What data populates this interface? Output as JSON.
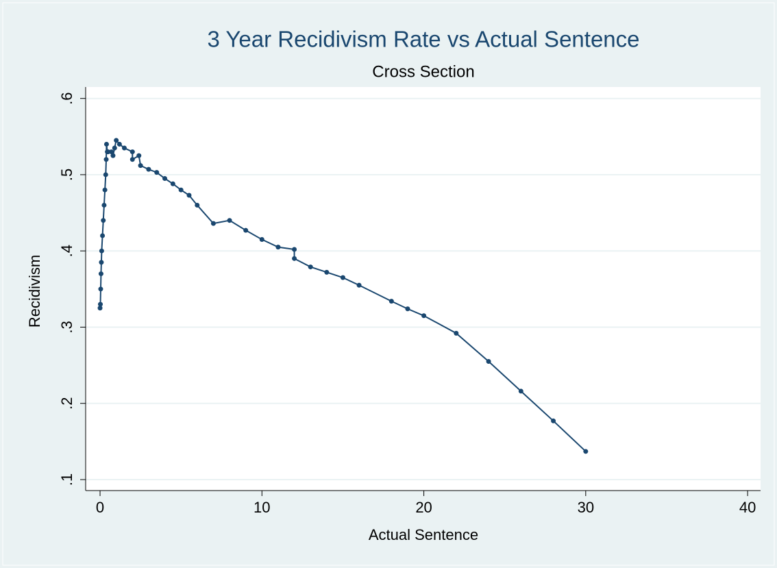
{
  "chart_data": {
    "type": "line",
    "title": "3 Year Recidivism Rate vs Actual Sentence",
    "subtitle": "Cross Section",
    "x_label": "Actual Sentence",
    "y_label": "Recidivism",
    "color": "#1a476f",
    "grid": true,
    "x": [
      0,
      0.02,
      0.04,
      0.06,
      0.08,
      0.1,
      0.15,
      0.2,
      0.25,
      0.3,
      0.35,
      0.38,
      0.4,
      0.45,
      0.5,
      0.7,
      0.8,
      0.9,
      1,
      1.2,
      1.5,
      2,
      2,
      2.4,
      2.5,
      3,
      3.5,
      4,
      4.5,
      5,
      5.5,
      6,
      7,
      8,
      9,
      10,
      11,
      12,
      12,
      13,
      14,
      15,
      16,
      18,
      19,
      20,
      22,
      24,
      26,
      28,
      30
    ],
    "values": [
      0.325,
      0.33,
      0.35,
      0.37,
      0.385,
      0.4,
      0.42,
      0.44,
      0.46,
      0.48,
      0.5,
      0.52,
      0.54,
      0.53,
      0.53,
      0.53,
      0.525,
      0.535,
      0.545,
      0.54,
      0.535,
      0.53,
      0.52,
      0.525,
      0.512,
      0.507,
      0.503,
      0.495,
      0.488,
      0.48,
      0.473,
      0.46,
      0.436,
      0.44,
      0.427,
      0.415,
      0.405,
      0.402,
      0.39,
      0.379,
      0.372,
      0.365,
      0.355,
      0.334,
      0.324,
      0.315,
      0.292,
      0.255,
      0.216,
      0.177,
      0.137
    ],
    "xlim": [
      -0.89,
      40.8
    ],
    "ylim": [
      0.0856,
      0.615
    ],
    "xticks": [
      0,
      10,
      20,
      30,
      40
    ],
    "yticks": [
      {
        "value": 0.1,
        "label": ".1"
      },
      {
        "value": 0.2,
        "label": ".2"
      },
      {
        "value": 0.3,
        "label": ".3"
      },
      {
        "value": 0.4,
        "label": ".4"
      },
      {
        "value": 0.5,
        "label": ".5"
      },
      {
        "value": 0.6,
        "label": ".6"
      }
    ]
  }
}
